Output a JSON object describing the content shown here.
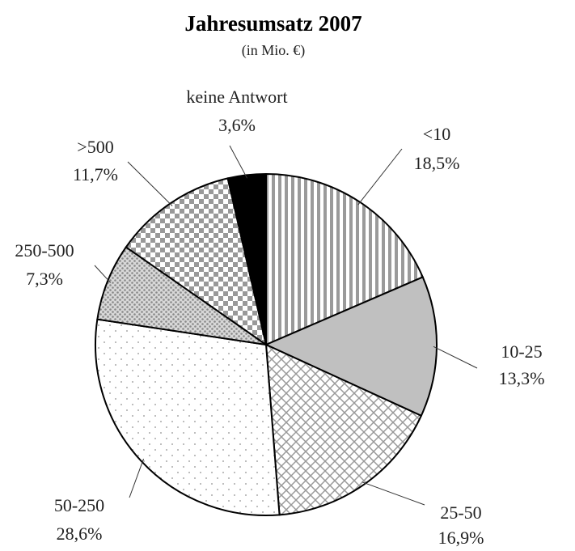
{
  "chart_data": {
    "type": "pie",
    "title": "Jahresumsatz 2007",
    "subtitle": "(in Mio. €)",
    "categories": [
      "<10",
      "10-25",
      "25-50",
      "50-250",
      "250-500",
      ">500",
      "keine Antwort"
    ],
    "values": [
      18.5,
      13.3,
      16.9,
      28.6,
      7.3,
      11.7,
      3.6
    ],
    "value_labels": [
      "18,5%",
      "13,3%",
      "16,9%",
      "28,6%",
      "7,3%",
      "11,7%",
      "3,6%"
    ]
  }
}
